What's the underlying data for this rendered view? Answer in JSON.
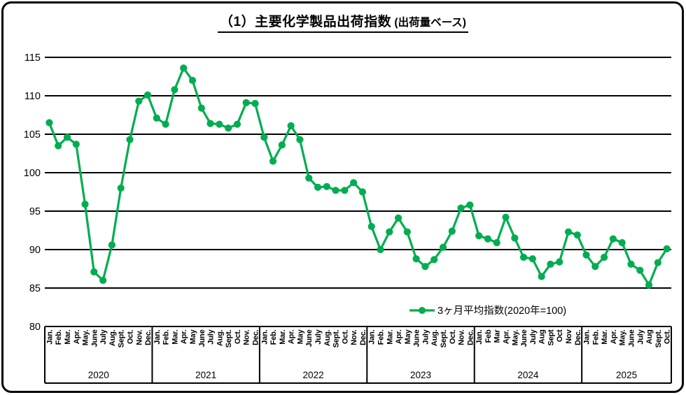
{
  "title": {
    "main": "（1）主要化学製品出荷指数",
    "suffix": " (出荷量ベース)"
  },
  "legend": {
    "label": "3ヶ月平均指数(2020年=100)"
  },
  "colors": {
    "series": "#00AD50",
    "grid": "#000000",
    "text": "#000000",
    "background": "#ffffff"
  },
  "chart_data": {
    "type": "line",
    "title": "（1）主要化学製品出荷指数 (出荷量ベース)",
    "series_name": "3ヶ月平均指数(2020年=100)",
    "ylabel": "",
    "xlabel": "",
    "ylim": [
      80,
      115
    ],
    "yticks": [
      80,
      85,
      90,
      95,
      100,
      105,
      110,
      115
    ],
    "grid": true,
    "legend_position": "inside-bottom-right",
    "marker": "circle",
    "years": [
      {
        "year": "2020",
        "months": [
          "Jan.",
          "Feb.",
          "Mar.",
          "Apr.",
          "May.",
          "June",
          "July",
          "Aug.",
          "Sept.",
          "Oct.",
          "Nov.",
          "Dec."
        ],
        "values": [
          106.5,
          103.5,
          104.6,
          103.7,
          95.9,
          87.1,
          86.0,
          90.6,
          98.0,
          104.3,
          109.3,
          110.1
        ]
      },
      {
        "year": "2021",
        "months": [
          "Jan.",
          "Feb.",
          "Mar.",
          "Apr.",
          "May",
          "June",
          "July",
          "Aug.",
          "Sept.",
          "Oct.",
          "Nov.",
          "Dec."
        ],
        "values": [
          107.1,
          106.3,
          110.8,
          113.6,
          112.0,
          108.4,
          106.4,
          106.3,
          105.8,
          106.3,
          109.1,
          109.0
        ]
      },
      {
        "year": "2022",
        "months": [
          "Jan.",
          "Feb.",
          "Mar.",
          "Apr.",
          "May",
          "June",
          "July",
          "Aug.",
          "Sept.",
          "Oct.",
          "Nov.",
          "Dec."
        ],
        "values": [
          104.6,
          101.5,
          103.6,
          106.1,
          104.3,
          99.3,
          98.1,
          98.2,
          97.7,
          97.7,
          98.7,
          97.5
        ]
      },
      {
        "year": "2023",
        "months": [
          "Jan.",
          "Feb.",
          "Mar.",
          "Apr.",
          "May",
          "June",
          "July",
          "Aug.",
          "Sept.",
          "Oct.",
          "Nov.",
          "Dec."
        ],
        "values": [
          93.0,
          90.0,
          92.3,
          94.1,
          92.3,
          88.8,
          87.8,
          88.7,
          90.3,
          92.4,
          95.4,
          95.8
        ]
      },
      {
        "year": "2024",
        "months": [
          "Jan.",
          "Feb",
          "Mar",
          "Apr.",
          "May.",
          "June",
          "July",
          "Aug",
          "Sept",
          "Oct",
          "Nov",
          "Dec."
        ],
        "values": [
          91.8,
          91.4,
          90.9,
          94.2,
          91.5,
          89.0,
          88.8,
          86.5,
          88.1,
          88.4,
          92.3,
          91.9
        ]
      },
      {
        "year": "2025",
        "months": [
          "Jan.",
          "Feb.",
          "Mar.",
          "Apr.",
          "May.",
          "June",
          "July",
          "Aug",
          "Sept.",
          "Oct."
        ],
        "values": [
          89.3,
          87.8,
          89.0,
          91.4,
          90.9,
          88.1,
          87.3,
          85.4,
          88.3,
          90.1
        ]
      }
    ]
  }
}
